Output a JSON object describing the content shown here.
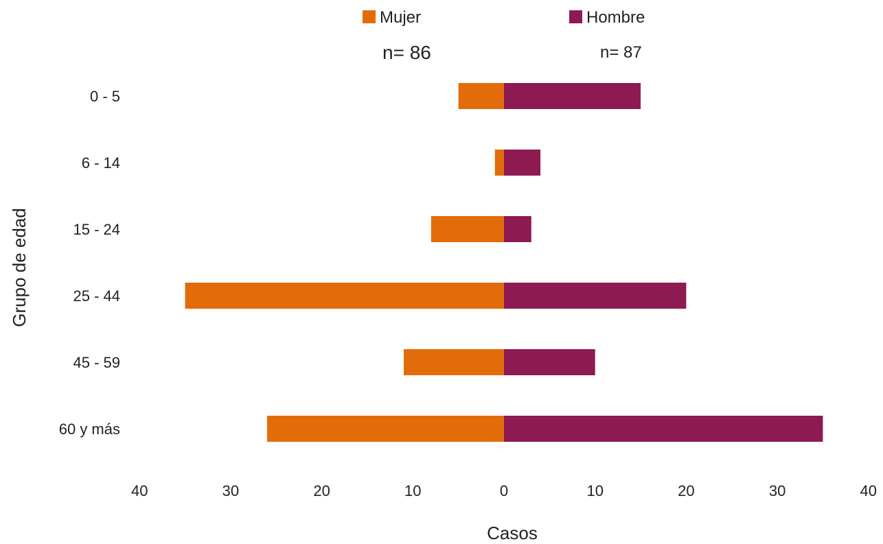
{
  "chart_data": {
    "type": "bar",
    "orientation": "horizontal",
    "layout": "diverging",
    "categories": [
      "0 - 5",
      "6 - 14",
      "15 - 24",
      "25 - 44",
      "45 - 59",
      "60 y más"
    ],
    "series": [
      {
        "name": "Mujer",
        "n_label": "n= 86",
        "color": "#E36C0A",
        "side": "left",
        "values": [
          5,
          1,
          8,
          35,
          11,
          26
        ]
      },
      {
        "name": "Hombre",
        "n_label": "n= 87",
        "color": "#8E1A52",
        "side": "right",
        "values": [
          15,
          4,
          3,
          20,
          10,
          35
        ]
      }
    ],
    "xlabel": "Casos",
    "ylabel": "Grupo de edad",
    "xlim": [
      -40,
      40
    ],
    "xticks": [
      -40,
      -30,
      -20,
      -10,
      0,
      10,
      20,
      30,
      40
    ],
    "xtick_labels": [
      "40",
      "30",
      "20",
      "10",
      "0",
      "10",
      "20",
      "30",
      "40"
    ],
    "grid": false,
    "legend_position": "top"
  }
}
